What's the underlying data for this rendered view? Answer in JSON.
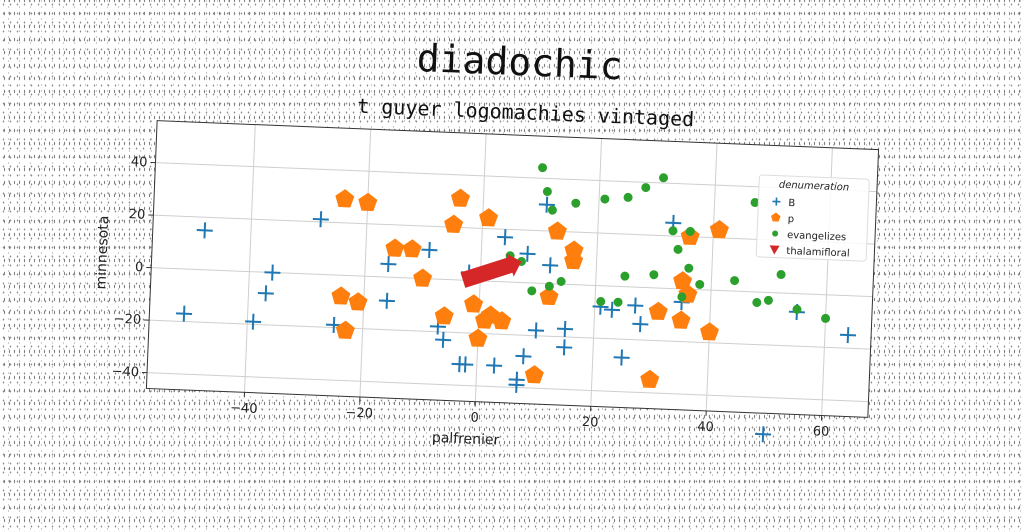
{
  "chart_data": {
    "type": "scatter",
    "suptitle": "diadochic",
    "title": "t guyer logomachies vintaged",
    "xlabel": "palfrenier",
    "ylabel": "minnesota",
    "xlim": [
      -57,
      68
    ],
    "ylim": [
      -46,
      56
    ],
    "xticks": [
      -40,
      -20,
      0,
      20,
      40,
      60
    ],
    "yticks": [
      -40,
      -20,
      0,
      20,
      40
    ],
    "grid": true,
    "legend": {
      "title": "denumeration",
      "position": "upper-right"
    },
    "series": [
      {
        "name": "B",
        "marker": "plus",
        "color": "#1f77b4",
        "points": [
          [
            -48,
            15
          ],
          [
            -28,
            21
          ],
          [
            -36,
            0
          ],
          [
            -37,
            -8
          ],
          [
            -51,
            -17
          ],
          [
            -39,
            -19
          ],
          [
            -25,
            -19
          ],
          [
            -16,
            5
          ],
          [
            -16,
            -9
          ],
          [
            -9,
            11
          ],
          [
            -2,
            3
          ],
          [
            -7,
            -18
          ],
          [
            -6,
            -23
          ],
          [
            -3,
            -32
          ],
          [
            -2,
            -32
          ],
          [
            4,
            17
          ],
          [
            8,
            11
          ],
          [
            11,
            30
          ],
          [
            12,
            7
          ],
          [
            10,
            -18
          ],
          [
            15,
            -17
          ],
          [
            15,
            -24
          ],
          [
            8,
            -28
          ],
          [
            3,
            -32
          ],
          [
            7,
            -37
          ],
          [
            7,
            -39
          ],
          [
            21,
            -8
          ],
          [
            23,
            -9
          ],
          [
            27,
            -7
          ],
          [
            28,
            -14
          ],
          [
            25,
            -27
          ],
          [
            33,
            25
          ],
          [
            35,
            -5
          ],
          [
            50,
            -54
          ],
          [
            55,
            -7
          ],
          [
            64,
            -15
          ]
        ]
      },
      {
        "name": "p",
        "marker": "pentagon",
        "color": "#ff7f0e",
        "points": [
          [
            -24,
            29
          ],
          [
            -20,
            28
          ],
          [
            -15,
            11
          ],
          [
            -12,
            11
          ],
          [
            -10,
            0
          ],
          [
            -4,
            31
          ],
          [
            -5,
            21
          ],
          [
            1,
            24
          ],
          [
            13,
            20
          ],
          [
            16,
            13
          ],
          [
            16,
            9
          ],
          [
            -24,
            -8
          ],
          [
            -21,
            -10
          ],
          [
            -23,
            -21
          ],
          [
            -6,
            -14
          ],
          [
            -1,
            -9
          ],
          [
            0,
            -22
          ],
          [
            1,
            -15
          ],
          [
            2,
            -13
          ],
          [
            4,
            -15
          ],
          [
            12,
            -5
          ],
          [
            10,
            -35
          ],
          [
            30,
            -35
          ],
          [
            31,
            -9
          ],
          [
            35,
            -12
          ],
          [
            35,
            3
          ],
          [
            36,
            -2
          ],
          [
            36,
            20
          ],
          [
            40,
            -16
          ],
          [
            41,
            23
          ]
        ]
      },
      {
        "name": "evangelizes",
        "marker": "circle",
        "color": "#2ca02c",
        "points": [
          [
            10,
            44
          ],
          [
            11,
            35
          ],
          [
            12,
            28
          ],
          [
            16,
            31
          ],
          [
            21,
            33
          ],
          [
            25,
            34
          ],
          [
            28,
            38
          ],
          [
            31,
            42
          ],
          [
            33,
            22
          ],
          [
            36,
            22
          ],
          [
            34,
            15
          ],
          [
            36,
            8
          ],
          [
            38,
            2
          ],
          [
            30,
            5
          ],
          [
            25,
            4
          ],
          [
            21,
            -6
          ],
          [
            24,
            -6
          ],
          [
            35,
            -3
          ],
          [
            44,
            4
          ],
          [
            47,
            34
          ],
          [
            50,
            -3
          ],
          [
            55,
            -6
          ],
          [
            60,
            -9
          ],
          [
            52,
            7
          ],
          [
            48,
            -4
          ],
          [
            5,
            10
          ],
          [
            7,
            8
          ],
          [
            9,
            -3
          ],
          [
            12,
            -1
          ],
          [
            14,
            1
          ]
        ]
      },
      {
        "name": "thalamifloral",
        "marker": "triangle_down",
        "color": "#d62728",
        "points": []
      }
    ],
    "annotations": [
      {
        "type": "arrow",
        "from": [
          -3,
          0
        ],
        "to": [
          7,
          8
        ],
        "color": "#d62728"
      }
    ]
  }
}
